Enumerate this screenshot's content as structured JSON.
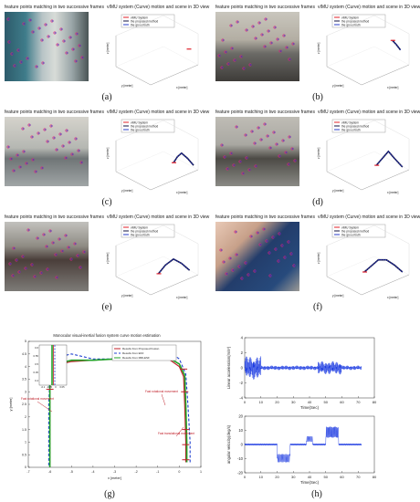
{
  "panels": [
    {
      "caption": "(a)",
      "photo_title": "feature points matching in two successive frames",
      "plot_title": "vIMU system (Curve) motion and scene in 3D view"
    },
    {
      "caption": "(b)",
      "photo_title": "feature points matching in two successive frames",
      "plot_title": "vIMU system (Curve) motion and scene in 3D view"
    },
    {
      "caption": "(c)",
      "photo_title": "feature points matching in two successive frames",
      "plot_title": "vIMU system (Curve) motion and scene in 3D view"
    },
    {
      "caption": "(d)",
      "photo_title": "feature points matching in two successive frames",
      "plot_title": "vIMU system (Curve) motion and scene in 3D view"
    },
    {
      "caption": "(e)",
      "photo_title": "feature points matching in two successive frames",
      "plot_title": "vIMU system (Curve) motion and scene in 3D view"
    },
    {
      "caption": "(f)",
      "photo_title": "feature points matching in two successive frames",
      "plot_title": "vIMU system (Curve) motion and scene in 3D view"
    }
  ],
  "legend3d": [
    "vIMU System",
    "the proposed method",
    "the groud truth"
  ],
  "axis3d": {
    "z": "z [meter]",
    "y": "y [meter]",
    "x": "x [meter]"
  },
  "colors": {
    "vimu": "#e0202a",
    "proposed": "#101040",
    "truth": "#2a3cc8",
    "green": "#22a32a"
  },
  "panel_g": {
    "caption": "(g)",
    "title": "Monocular visual-inertial fusion system curve motion estimation",
    "legend": [
      "Results from Proposed Fusion",
      "Results from EKF",
      "Results from MRLESF"
    ],
    "annotations": [
      "Fast rotational movement",
      "Fast rotational movement",
      "Fast translational movement"
    ],
    "xlabel": "x [meter]",
    "ylabel": "y [meter]",
    "xticks": [
      "-7",
      "-6",
      "-5",
      "-4",
      "-3",
      "-2",
      "-1",
      "0",
      "1"
    ],
    "yticks": [
      "0",
      "0.5",
      "1",
      "1.5",
      "2",
      "2.5",
      "3",
      "3.5",
      "4",
      "4.5",
      "5"
    ],
    "inset_yticks": [
      "0.6",
      "0.55",
      "0.5",
      "0.45",
      "0.4"
    ],
    "inset_xticks": [
      "-0.1",
      "-0.05",
      "0",
      "0.05"
    ]
  },
  "panel_h": {
    "caption": "(h)",
    "top_ylabel": "Linear acceleration(m/s²)",
    "bottom_ylabel": "angular velocity(deg/s)",
    "xlabel": "Time(Sec)",
    "xticks": [
      "0",
      "10",
      "20",
      "30",
      "40",
      "50",
      "60",
      "70",
      "80"
    ],
    "top_yticks": [
      "4",
      "2",
      "0",
      "-2",
      "-4"
    ],
    "bottom_yticks": [
      "20",
      "10",
      "0",
      "-10",
      "-20"
    ]
  },
  "chart_data": [
    {
      "type": "line",
      "title": "Monocular visual-inertial fusion system curve motion estimation",
      "xlabel": "x [meter]",
      "ylabel": "y [meter]",
      "xlim": [
        -7,
        1
      ],
      "ylim": [
        0,
        5
      ],
      "series": [
        {
          "name": "Results from Proposed Fusion",
          "x": [
            0.3,
            0.3,
            0.25,
            0.2,
            0,
            -0.5,
            -1,
            -2,
            -3,
            -4,
            -5,
            -5.5,
            -5.9,
            -6.0,
            -6.0,
            -6.0,
            -6.0
          ],
          "y": [
            0.2,
            1,
            2.5,
            3.6,
            4.0,
            4.3,
            4.35,
            4.3,
            4.3,
            4.25,
            4.2,
            4.1,
            4.0,
            3.5,
            2.5,
            1,
            0
          ]
        },
        {
          "name": "Results from EKF",
          "x": [
            0.5,
            0.5,
            0.4,
            0.3,
            0,
            -0.5,
            -1,
            -2,
            -3,
            -4,
            -5,
            -5.5,
            -5.9,
            -6.0,
            -6.05,
            -6.05,
            -6.05
          ],
          "y": [
            0.2,
            1,
            2.5,
            3.7,
            4.3,
            4.6,
            4.6,
            4.4,
            4.3,
            4.3,
            4.5,
            4.4,
            4.1,
            3.5,
            2.5,
            1,
            0
          ]
        },
        {
          "name": "Results from MRLESF",
          "x": [
            0.35,
            0.35,
            0.3,
            0.25,
            0,
            -0.5,
            -1,
            -2,
            -3,
            -4,
            -5,
            -5.5,
            -5.9,
            -6.0,
            -6.0,
            -6.0,
            -6.0
          ],
          "y": [
            0.2,
            1,
            2.5,
            3.65,
            4.1,
            4.35,
            4.4,
            4.35,
            4.3,
            4.25,
            4.25,
            4.15,
            4.0,
            3.5,
            2.5,
            1,
            0
          ]
        }
      ]
    }
  ]
}
